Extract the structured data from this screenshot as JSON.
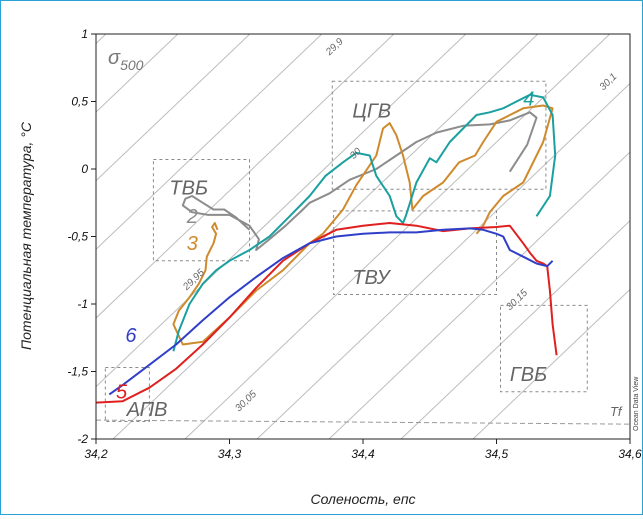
{
  "chart_data": {
    "type": "line",
    "xlabel": "Соленость, епс",
    "ylabel": "Потенциальная температура, °C",
    "xlim": [
      34.2,
      34.6
    ],
    "ylim": [
      -2,
      1
    ],
    "x_ticks": [
      "34,2",
      "34,3",
      "34,4",
      "34,5",
      "34,6"
    ],
    "y_ticks": [
      "1",
      "0,5",
      "0",
      "-0,5",
      "-1",
      "-1,5",
      "-2"
    ],
    "sigma_label": "σ500",
    "credit": "Ocean Data View",
    "freezing_line": {
      "label": "Tf",
      "y": [
        -1.86,
        -1.89
      ]
    },
    "isopycnals": [
      {
        "label": "29,9",
        "lx": 34.375,
        "ly": 0.84
      },
      {
        "label": "29,95",
        "lx": 34.268,
        "ly": -0.9
      },
      {
        "label": "30",
        "lx": 34.393,
        "ly": 0.07
      },
      {
        "label": "30,05",
        "lx": 34.307,
        "ly": -1.8
      },
      {
        "label": "30,1",
        "lx": 34.58,
        "ly": 0.58
      },
      {
        "label": "30,15",
        "lx": 34.51,
        "ly": -1.05
      }
    ],
    "regions": [
      {
        "label": "ЦГВ",
        "box": [
          34.377,
          34.537,
          -0.15,
          0.65
        ],
        "lx": 34.392,
        "ly": 0.38
      },
      {
        "label": "ТВБ",
        "box": [
          34.243,
          34.315,
          -0.68,
          0.07
        ],
        "lx": 34.255,
        "ly": -0.19
      },
      {
        "label": "ТВУ",
        "box": [
          34.378,
          34.5,
          -0.93,
          -0.31
        ],
        "lx": 34.392,
        "ly": -0.85
      },
      {
        "label": "ГВБ",
        "box": [
          34.503,
          34.568,
          -1.65,
          -1.01
        ],
        "lx": 34.51,
        "ly": -1.57
      },
      {
        "label": "АПВ",
        "box": [
          34.207,
          34.24,
          -1.87,
          -1.47
        ],
        "lx": 34.223,
        "ly": -1.83
      }
    ],
    "series": [
      {
        "name": "2",
        "color": "#8c8c8c",
        "lx": 34.268,
        "ly": -0.4,
        "x": [
          34.315,
          34.305,
          34.296,
          34.288,
          34.28,
          34.272,
          34.267,
          34.265,
          34.272,
          34.284,
          34.3,
          34.315,
          34.322,
          34.32,
          34.33,
          34.342,
          34.355,
          34.36,
          34.375,
          34.39,
          34.41,
          34.425,
          34.44,
          34.455,
          34.475,
          34.495,
          34.51,
          34.525,
          34.53,
          34.523,
          34.51
        ],
        "y": [
          -0.45,
          -0.36,
          -0.3,
          -0.3,
          -0.25,
          -0.2,
          -0.22,
          -0.27,
          -0.32,
          -0.34,
          -0.34,
          -0.42,
          -0.52,
          -0.6,
          -0.52,
          -0.42,
          -0.3,
          -0.25,
          -0.18,
          -0.08,
          0.0,
          0.1,
          0.2,
          0.27,
          0.32,
          0.33,
          0.36,
          0.42,
          0.38,
          0.18,
          -0.02
        ]
      },
      {
        "name": "3",
        "color": "#d08a2e",
        "lx": 34.268,
        "ly": -0.6,
        "x": [
          34.291,
          34.289,
          34.287,
          34.29,
          34.288,
          34.283,
          34.282,
          34.277,
          34.27,
          34.262,
          34.258,
          34.265,
          34.28,
          34.3,
          34.32,
          34.34,
          34.36,
          34.37,
          34.385,
          34.395,
          34.41,
          34.415,
          34.42,
          34.425,
          34.43,
          34.435,
          34.437,
          34.445,
          34.46,
          34.472,
          34.484,
          34.49,
          34.5,
          34.52,
          34.535,
          34.542,
          34.535,
          34.52,
          34.505,
          34.495,
          34.49,
          34.485
        ],
        "y": [
          -0.45,
          -0.4,
          -0.43,
          -0.48,
          -0.55,
          -0.65,
          -0.75,
          -0.85,
          -0.95,
          -1.05,
          -1.15,
          -1.3,
          -1.28,
          -1.1,
          -0.9,
          -0.75,
          -0.55,
          -0.48,
          -0.3,
          -0.12,
          0.1,
          0.3,
          0.34,
          0.25,
          0.1,
          -0.1,
          -0.3,
          -0.2,
          -0.1,
          0.05,
          0.1,
          0.2,
          0.35,
          0.45,
          0.47,
          0.45,
          0.2,
          -0.1,
          -0.2,
          -0.32,
          -0.42,
          -0.48
        ]
      },
      {
        "name": "4",
        "color": "#1aa0a0",
        "lx": 34.52,
        "ly": 0.47,
        "x": [
          34.258,
          34.262,
          34.27,
          34.28,
          34.29,
          34.3,
          34.315,
          34.33,
          34.345,
          34.36,
          34.372,
          34.385,
          34.395,
          34.405,
          34.41,
          34.42,
          34.425,
          34.43,
          34.432,
          34.44,
          34.45,
          34.455,
          34.465,
          34.475,
          34.485,
          34.495,
          34.505,
          34.515,
          34.525,
          34.535,
          34.542,
          34.544,
          34.54,
          34.53
        ],
        "y": [
          -1.35,
          -1.2,
          -1.0,
          -0.85,
          -0.75,
          -0.68,
          -0.6,
          -0.5,
          -0.35,
          -0.2,
          -0.05,
          0.05,
          0.12,
          0.1,
          -0.05,
          -0.2,
          -0.35,
          -0.4,
          -0.35,
          -0.1,
          0.08,
          0.05,
          0.2,
          0.3,
          0.4,
          0.42,
          0.45,
          0.5,
          0.55,
          0.53,
          0.4,
          0.1,
          -0.2,
          -0.35
        ]
      },
      {
        "name": "5",
        "color": "#e01f1f",
        "lx": 34.215,
        "ly": -1.7,
        "x": [
          34.2,
          34.22,
          34.24,
          34.26,
          34.28,
          34.3,
          34.32,
          34.34,
          34.36,
          34.38,
          34.4,
          34.42,
          34.44,
          34.46,
          34.48,
          34.5,
          34.51,
          34.52,
          34.525,
          34.53,
          34.535,
          34.538,
          34.54,
          34.542,
          34.545
        ],
        "y": [
          -1.73,
          -1.72,
          -1.62,
          -1.48,
          -1.3,
          -1.1,
          -0.88,
          -0.68,
          -0.55,
          -0.45,
          -0.42,
          -0.4,
          -0.42,
          -0.46,
          -0.44,
          -0.43,
          -0.42,
          -0.55,
          -0.62,
          -0.68,
          -0.7,
          -0.72,
          -0.9,
          -1.15,
          -1.38
        ]
      },
      {
        "name": "6",
        "color": "#2f3fc8",
        "lx": 34.222,
        "ly": -1.28,
        "x": [
          34.21,
          34.22,
          34.24,
          34.26,
          34.28,
          34.3,
          34.32,
          34.34,
          34.36,
          34.38,
          34.4,
          34.42,
          34.44,
          34.46,
          34.48,
          34.49,
          34.5,
          34.505,
          34.51,
          34.52,
          34.53,
          34.538,
          34.542
        ],
        "y": [
          -1.67,
          -1.6,
          -1.45,
          -1.3,
          -1.12,
          -0.95,
          -0.8,
          -0.66,
          -0.55,
          -0.5,
          -0.48,
          -0.47,
          -0.47,
          -0.45,
          -0.44,
          -0.45,
          -0.48,
          -0.5,
          -0.6,
          -0.65,
          -0.7,
          -0.72,
          -0.68
        ]
      }
    ]
  }
}
